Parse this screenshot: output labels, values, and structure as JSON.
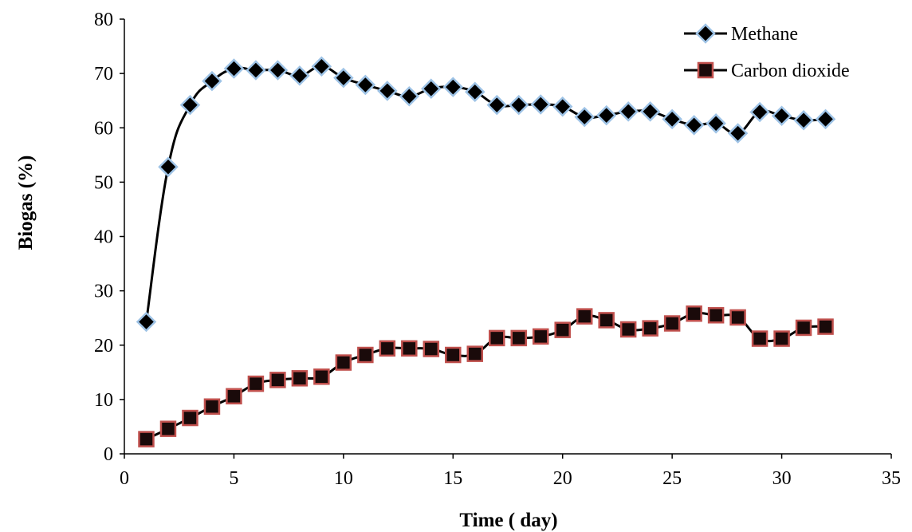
{
  "chart_data": {
    "type": "line",
    "xlabel": "Time ( day)",
    "ylabel": "Biogas (%)",
    "xlim": [
      0,
      35
    ],
    "ylim": [
      0,
      80
    ],
    "xticks": [
      0,
      5,
      10,
      15,
      20,
      25,
      30,
      35
    ],
    "yticks": [
      0,
      10,
      20,
      30,
      40,
      50,
      60,
      70,
      80
    ],
    "grid": false,
    "legend_position": "top-right",
    "x": [
      1,
      2,
      3,
      4,
      5,
      6,
      7,
      8,
      9,
      10,
      11,
      12,
      13,
      14,
      15,
      16,
      17,
      18,
      19,
      20,
      21,
      22,
      23,
      24,
      25,
      26,
      27,
      28,
      29,
      30,
      31,
      32
    ],
    "series": [
      {
        "name": "Methane",
        "marker": "diamond",
        "marker_fill": "#000000",
        "marker_edge": "#9ec3e6",
        "line_color": "#000000",
        "values": [
          24.3,
          52.8,
          64.2,
          68.6,
          70.9,
          70.6,
          70.6,
          69.6,
          71.3,
          69.2,
          67.9,
          66.8,
          65.8,
          67.2,
          67.5,
          66.6,
          64.2,
          64.2,
          64.3,
          63.9,
          62.0,
          62.3,
          63.0,
          63.0,
          61.6,
          60.5,
          60.8,
          59.0,
          62.9,
          62.2,
          61.4,
          61.6
        ]
      },
      {
        "name": "Carbon dioxide",
        "marker": "square",
        "marker_fill": "#1a0a0a",
        "marker_edge": "#c0504d",
        "line_color": "#000000",
        "values": [
          2.7,
          4.6,
          6.6,
          8.7,
          10.6,
          12.9,
          13.6,
          13.9,
          14.2,
          16.8,
          18.2,
          19.4,
          19.4,
          19.3,
          18.2,
          18.4,
          21.3,
          21.3,
          21.6,
          22.8,
          25.3,
          24.6,
          22.9,
          23.1,
          24.0,
          25.8,
          25.5,
          25.1,
          21.2,
          21.2,
          23.2,
          23.4
        ]
      }
    ]
  }
}
